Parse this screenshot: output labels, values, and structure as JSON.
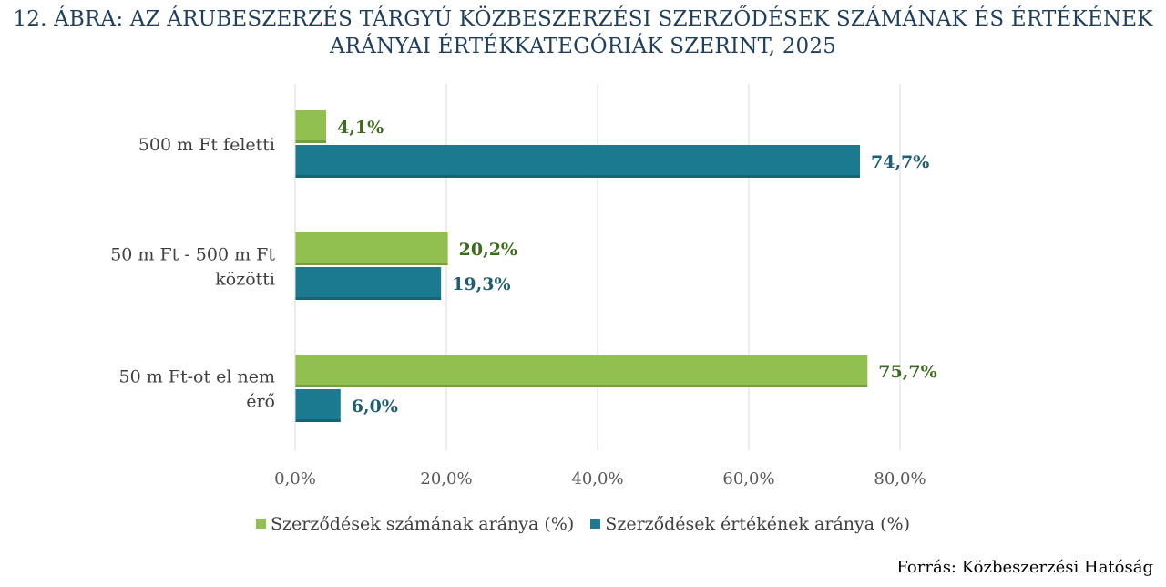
{
  "title": {
    "line1": "12. ÁBRA:  AZ ÁRUBESZERZÉS TÁRGYÚ KÖZBESZERZÉSI SZERZŐDÉSEK SZÁMÁNAK ÉS ÉRTÉKÉNEK",
    "line2": "ARÁNYAI ÉRTÉKKATEGÓRIÁK SZERINT, 2025"
  },
  "colors": {
    "green": "#92c050",
    "teal": "#1b7a8f",
    "green_label": "#3d6b1f",
    "teal_label": "#1d5e73"
  },
  "chart_data": {
    "type": "bar",
    "orientation": "horizontal",
    "categories": [
      [
        "500 m Ft feletti"
      ],
      [
        "50 m Ft - 500 m Ft",
        "közötti"
      ],
      [
        "50 m Ft-ot el nem",
        "érő"
      ]
    ],
    "series": [
      {
        "name": "Szerződések számának aránya (%)",
        "values": [
          4.1,
          20.2,
          75.7
        ],
        "labels": [
          "4,1%",
          "20,2%",
          "75,7%"
        ]
      },
      {
        "name": "Szerződések értékének aránya (%)",
        "values": [
          74.7,
          19.3,
          6.0
        ],
        "labels": [
          "74,7%",
          "19,3%",
          "6,0%"
        ]
      }
    ],
    "xlim": [
      0,
      80
    ],
    "ticks": [
      0,
      20,
      40,
      60,
      80
    ],
    "tick_labels": [
      "0,0%",
      "20,0%",
      "40,0%",
      "60,0%",
      "80,0%"
    ],
    "grid": true,
    "legend_position": "bottom"
  },
  "source": "Forrás: Közbeszerzési Hatóság"
}
